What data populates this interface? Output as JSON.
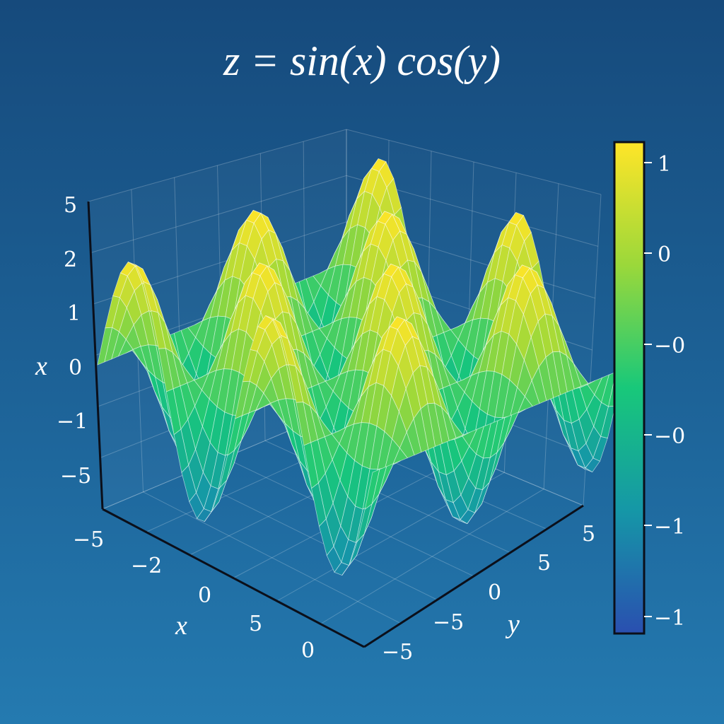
{
  "chart_data": {
    "type": "surface",
    "title": "z = sin(x) cos(y)",
    "function": "sin(x) cos(y)",
    "x_range": [
      -6.2832,
      6.2832
    ],
    "y_range": [
      -6.2832,
      6.2832
    ],
    "z_range": [
      -1,
      1
    ],
    "grid": true,
    "colormap": "viridis-like (blue to green to yellow)",
    "colors": {
      "low": "#2a4fb0",
      "mid_low": "#1597a7",
      "mid": "#18c87a",
      "mid_high": "#9bd83a",
      "high": "#ffe528"
    },
    "axes": {
      "vertical": {
        "label": "x",
        "ticks": [
          "5",
          "2",
          "1",
          "0",
          "−1",
          "−5"
        ]
      },
      "x": {
        "label": "x",
        "ticks": [
          "−5",
          "−2",
          "0",
          "5",
          "0"
        ]
      },
      "y": {
        "label": "y",
        "ticks": [
          "−5",
          "−5",
          "0",
          "5",
          "5"
        ]
      }
    },
    "colorbar": {
      "placement": "right",
      "ticks": [
        "1",
        "0",
        "−0",
        "−0",
        "−1",
        "−1"
      ]
    }
  }
}
